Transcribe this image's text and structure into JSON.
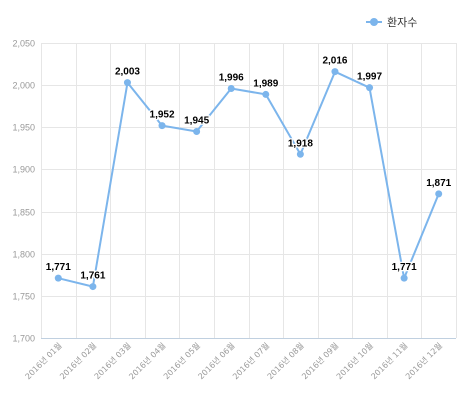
{
  "colors": {
    "series": "#7cb5ec",
    "grid": "#e6e6e6",
    "axis_line": "#c0d0e0",
    "tick_label": "#999999",
    "data_label": "#000000"
  },
  "legend": {
    "label": "환자수"
  },
  "chart_data": {
    "type": "line",
    "categories": [
      "2016년 01월",
      "2016년 02월",
      "2016년 03월",
      "2016년 04월",
      "2016년 05월",
      "2016년 06월",
      "2016년 07월",
      "2016년 08월",
      "2016년 09월",
      "2016년 10월",
      "2016년 11월",
      "2016년 12월"
    ],
    "series": [
      {
        "name": "환자수",
        "values": [
          1771,
          1761,
          2003,
          1952,
          1945,
          1996,
          1989,
          1918,
          2016,
          1997,
          1771,
          1871
        ]
      }
    ],
    "value_labels": [
      "1,771",
      "1,761",
      "2,003",
      "1,952",
      "1,945",
      "1,996",
      "1,989",
      "1,918",
      "2,016",
      "1,997",
      "1,771",
      "1,871"
    ],
    "y_ticks": [
      1700,
      1750,
      1800,
      1850,
      1900,
      1950,
      2000,
      2050
    ],
    "y_tick_labels": [
      "1,700",
      "1,750",
      "1,800",
      "1,850",
      "1,900",
      "1,950",
      "2,000",
      "2,050"
    ],
    "ylim": [
      1700,
      2050
    ],
    "grid": true,
    "legend_position": "top-right"
  }
}
